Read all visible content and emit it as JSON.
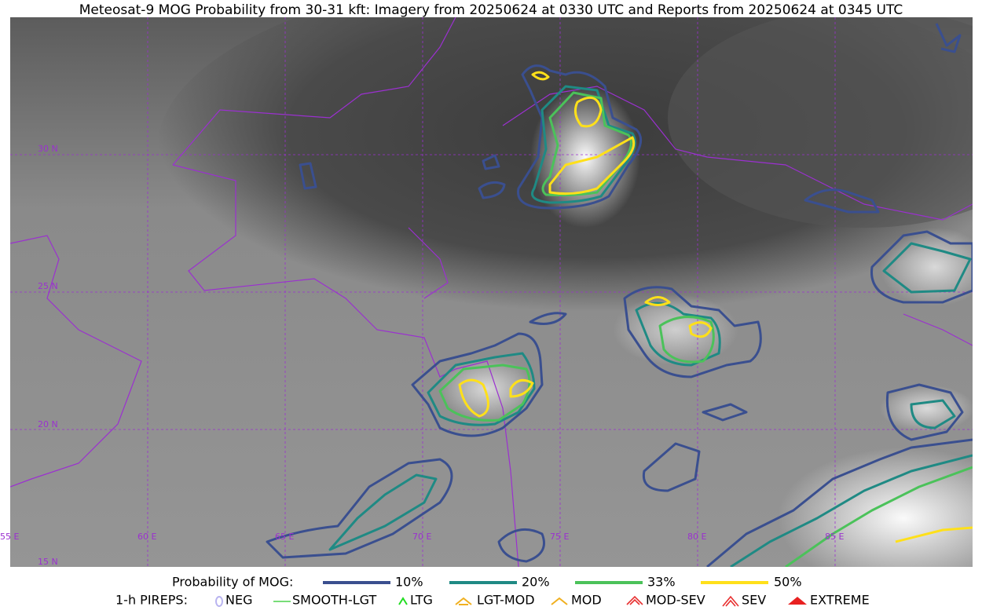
{
  "title": "Meteosat-9 MOG Probability from 30-31 kft: Imagery from 20250624 at 0330 UTC and Reports from 20250624 at 0345 UTC",
  "map": {
    "lat_labels": [
      "30 N",
      "25 N",
      "20 N",
      "15 N"
    ],
    "lon_labels": [
      "55 E",
      "60 E",
      "65 E",
      "70 E",
      "75 E",
      "80 E",
      "85 E"
    ]
  },
  "legend": {
    "probability_label": "Probability of MOG:",
    "levels": [
      "10%",
      "20%",
      "33%",
      "50%"
    ],
    "pireps_label": "1-h PIREPS:",
    "pireps": [
      "NEG",
      "SMOOTH-LGT",
      "LTG",
      "LGT-MOD",
      "MOD",
      "MOD-SEV",
      "SEV",
      "EXTREME"
    ]
  }
}
